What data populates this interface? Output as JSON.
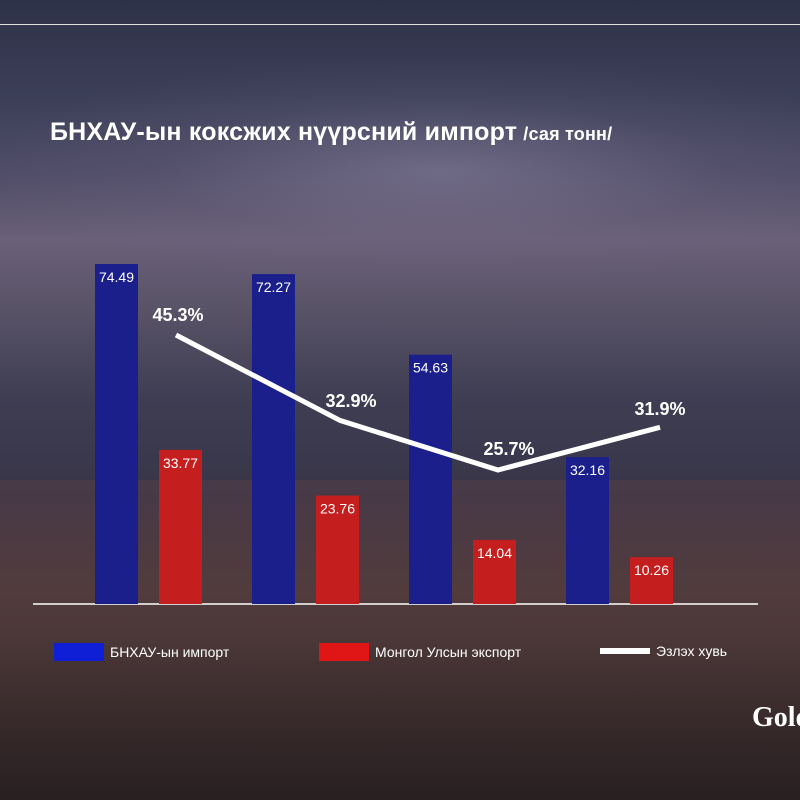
{
  "title": "БНХАУ-ын коксжих нүүрсний импорт",
  "title_unit": "/сая тонн/",
  "logo_text": "Gold",
  "chart_data": {
    "type": "bar",
    "title": "БНХАУ-ын коксжих нүүрсний импорт /сая тонн/",
    "categories": [
      "",
      "",
      "",
      ""
    ],
    "series": [
      {
        "name": "БНХАУ-ын импорт",
        "color": "#1a1f8c",
        "values": [
          74.49,
          72.27,
          54.63,
          32.16
        ],
        "labels": [
          "74.49",
          "72.27",
          "54.63",
          "32.16"
        ]
      },
      {
        "name": "Монгол Улсын экспорт",
        "color": "#c41e1e",
        "values": [
          33.77,
          23.76,
          14.04,
          10.26
        ],
        "labels": [
          "33.77",
          "23.76",
          "14.04",
          "10.26"
        ]
      },
      {
        "name": "Эзлэх хувь",
        "type": "line",
        "color": "#ffffff",
        "values": [
          45.3,
          32.9,
          25.7,
          31.9
        ],
        "labels": [
          "45.3%",
          "32.9%",
          "25.7%",
          "31.9%"
        ]
      }
    ],
    "ylim": [
      0,
      80
    ],
    "grid": false,
    "legend": "bottom"
  }
}
